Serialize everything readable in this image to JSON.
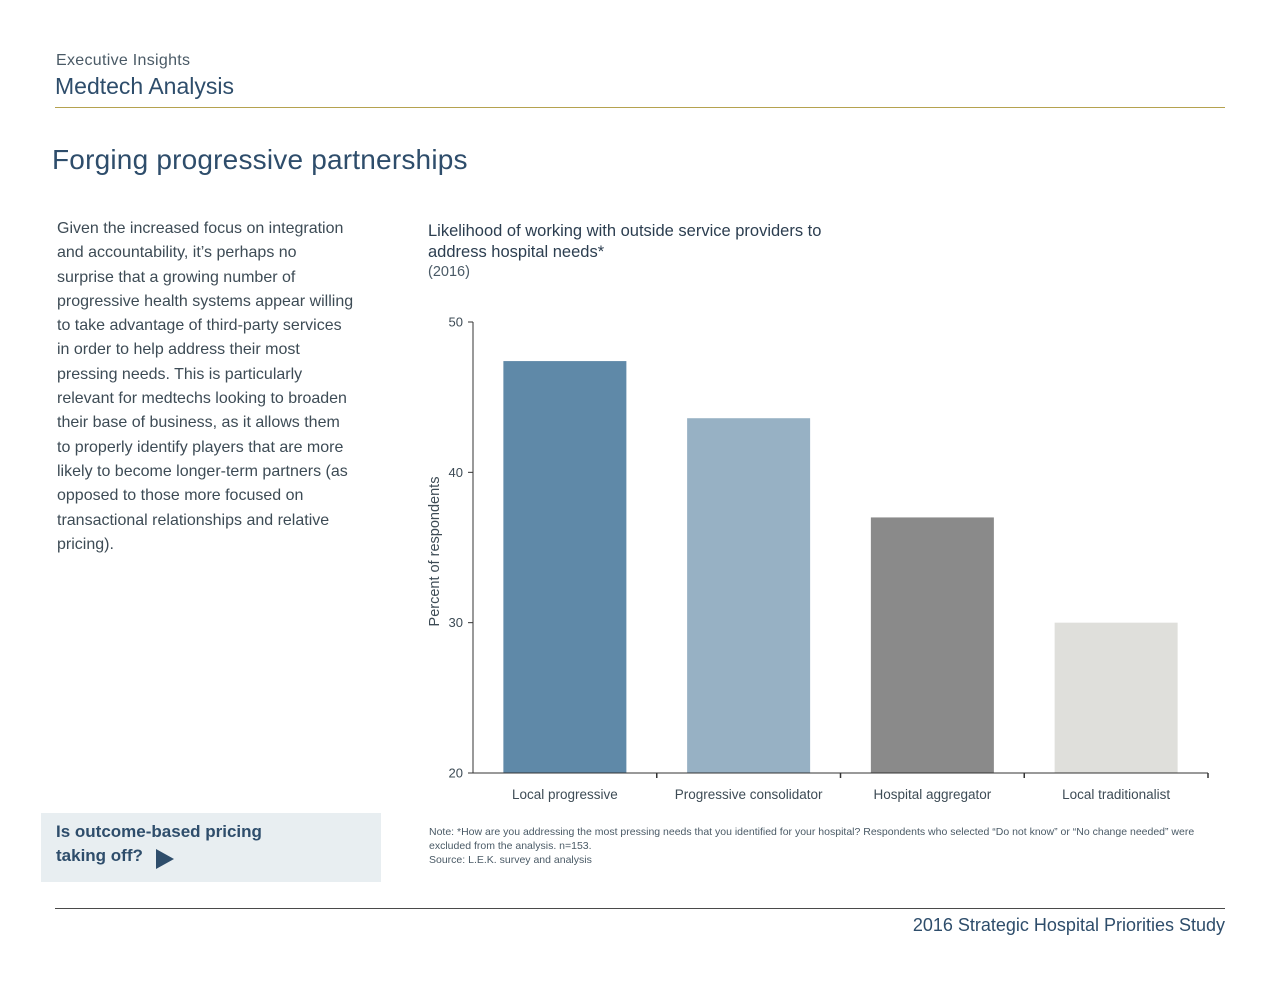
{
  "header": {
    "kicker": "Executive Insights",
    "title": "Medtech Analysis"
  },
  "page_title": "Forging progressive partnerships",
  "body_text": "Given the increased focus on integration and accountability, it’s perhaps no surprise that a growing number of progressive health systems appear willing to take advantage of third-party services in order to help address their most pressing needs. This is particularly relevant for medtechs looking to broaden their base of business, as it allows them to properly identify players that are more likely to become longer-term partners (as opposed to those more focused on transactional relationships and relative pricing).",
  "cta": {
    "line1": "Is outcome-based pricing",
    "line2": "taking off?"
  },
  "chart_data": {
    "type": "bar",
    "title": "Likelihood of working with outside service providers to address hospital needs*",
    "subtitle": "(2016)",
    "xlabel": "",
    "ylabel": "Percent of respondents",
    "ylim": [
      20,
      50
    ],
    "yticks": [
      20,
      30,
      40,
      50
    ],
    "categories": [
      "Local progressive",
      "Progressive consolidator",
      "Hospital aggregator",
      "Local traditionalist"
    ],
    "values": [
      47.4,
      43.6,
      37.0,
      30.0
    ],
    "colors": [
      "#5f89a8",
      "#97b1c4",
      "#8a8a8a",
      "#dfdfdb"
    ],
    "grid": false,
    "legend": "none"
  },
  "notes": {
    "note": "Note: *How are you addressing the most pressing needs that you identified for your hospital? Respondents who selected “Do not know” or “No change needed” were excluded from the analysis. n=153.",
    "source": "Source: L.E.K. survey and analysis"
  },
  "footer": {
    "text": "2016 Strategic Hospital Priorities Study"
  }
}
